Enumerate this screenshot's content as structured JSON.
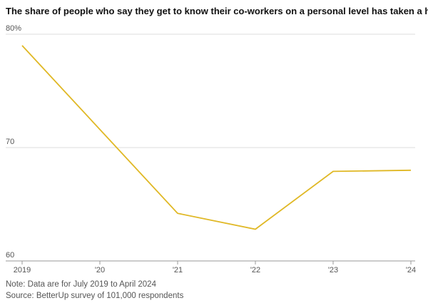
{
  "chart_data": {
    "type": "line",
    "title": "The share of people who say they get to know their co-workers on a personal level has taken a hit",
    "x": [
      2019,
      2021,
      2022,
      2023,
      2024
    ],
    "series": [
      {
        "color": "#e0b825",
        "values": [
          79.0,
          64.2,
          62.8,
          67.9,
          68.0
        ]
      }
    ],
    "xlim": [
      2019,
      2024
    ],
    "xticks": [
      2019,
      {
        "value": 2020,
        "label": "'20"
      },
      {
        "value": 2021,
        "label": "'21"
      },
      {
        "value": 2022,
        "label": "'22"
      },
      {
        "value": 2023,
        "label": "'23"
      },
      {
        "value": 2024,
        "label": "'24"
      }
    ],
    "ylim": [
      60,
      80
    ],
    "yticks": [
      60,
      70,
      {
        "value": 80,
        "label": "80%"
      }
    ],
    "grid": true,
    "note": "Note: Data are for July 2019 to April 2024",
    "source": "Source: BetterUp survey of 101,000 respondents"
  }
}
